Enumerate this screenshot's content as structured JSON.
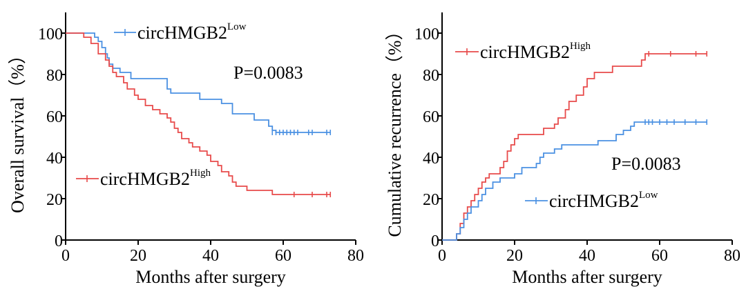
{
  "chart_data": [
    {
      "type": "line",
      "xlabel": "Months after surgery",
      "ylabel": "Overall survival（%）",
      "xlim": [
        0,
        80
      ],
      "ylim": [
        0,
        100
      ],
      "xticks": [
        0,
        20,
        40,
        60,
        80
      ],
      "yticks": [
        0,
        20,
        40,
        60,
        80,
        100
      ],
      "xtick_labels": [
        "0",
        "20",
        "40",
        "60",
        "80"
      ],
      "ytick_labels": [
        "0",
        "20",
        "40",
        "60",
        "80",
        "100"
      ],
      "annotation": "P=0.0083",
      "grid": false,
      "series": [
        {
          "name_base": "circHMGB2",
          "name_sup": "Low",
          "color": "#4a90e2",
          "steps": [
            [
              0,
              100
            ],
            [
              7,
              100
            ],
            [
              8,
              98
            ],
            [
              9,
              96
            ],
            [
              10,
              93
            ],
            [
              11,
              90
            ],
            [
              11.5,
              88
            ],
            [
              12,
              85
            ],
            [
              13,
              83
            ],
            [
              15,
              81
            ],
            [
              18,
              78
            ],
            [
              27,
              78
            ],
            [
              28,
              73
            ],
            [
              29,
              71
            ],
            [
              36,
              71
            ],
            [
              37,
              68
            ],
            [
              42,
              68
            ],
            [
              43,
              66
            ],
            [
              45,
              66
            ],
            [
              46,
              61
            ],
            [
              51,
              61
            ],
            [
              52,
              58
            ],
            [
              55,
              58
            ],
            [
              56,
              55
            ],
            [
              57,
              53
            ],
            [
              58,
              52
            ],
            [
              73,
              52
            ]
          ],
          "censored": [
            [
              57,
              52
            ],
            [
              58,
              52
            ],
            [
              59,
              52
            ],
            [
              60,
              52
            ],
            [
              61,
              52
            ],
            [
              62,
              52
            ],
            [
              63,
              52
            ],
            [
              64,
              52
            ],
            [
              67,
              52
            ],
            [
              68,
              52
            ],
            [
              72,
              52
            ],
            [
              73,
              52
            ]
          ]
        },
        {
          "name_base": "circHMGB2",
          "name_sup": "High",
          "color": "#e84a4a",
          "steps": [
            [
              0,
              100
            ],
            [
              4,
              100
            ],
            [
              5,
              98
            ],
            [
              7,
              95
            ],
            [
              9,
              90
            ],
            [
              11,
              87
            ],
            [
              12,
              84
            ],
            [
              13,
              81
            ],
            [
              14,
              79
            ],
            [
              16,
              76
            ],
            [
              17,
              73
            ],
            [
              19,
              70
            ],
            [
              20,
              68
            ],
            [
              22,
              65
            ],
            [
              24,
              63
            ],
            [
              26,
              61
            ],
            [
              28,
              59
            ],
            [
              29,
              57
            ],
            [
              30,
              54
            ],
            [
              31,
              52
            ],
            [
              32,
              49
            ],
            [
              34,
              47
            ],
            [
              35,
              45
            ],
            [
              37,
              43
            ],
            [
              39,
              41
            ],
            [
              40,
              38
            ],
            [
              42,
              36
            ],
            [
              43,
              33
            ],
            [
              45,
              31
            ],
            [
              46,
              28
            ],
            [
              47,
              26
            ],
            [
              50,
              24
            ],
            [
              56,
              24
            ],
            [
              57,
              22
            ],
            [
              73,
              22
            ]
          ],
          "censored": [
            [
              63,
              22
            ],
            [
              68,
              22
            ],
            [
              72,
              22
            ],
            [
              73,
              22
            ]
          ]
        }
      ]
    },
    {
      "type": "line",
      "xlabel": "Months after surgery",
      "ylabel": "Cumulative recurrence（%）",
      "xlim": [
        0,
        80
      ],
      "ylim": [
        0,
        100
      ],
      "xticks": [
        0,
        20,
        40,
        60,
        80
      ],
      "yticks": [
        0,
        20,
        40,
        60,
        80,
        100
      ],
      "xtick_labels": [
        "0",
        "20",
        "40",
        "60",
        "80"
      ],
      "ytick_labels": [
        "0",
        "20",
        "40",
        "60",
        "80",
        "100"
      ],
      "annotation": "P=0.0083",
      "grid": false,
      "series": [
        {
          "name_base": "circHMGB2",
          "name_sup": "High",
          "color": "#e84a4a",
          "steps": [
            [
              0,
              0
            ],
            [
              3,
              0
            ],
            [
              4,
              3
            ],
            [
              5,
              8
            ],
            [
              6,
              13
            ],
            [
              7,
              16
            ],
            [
              8,
              19
            ],
            [
              9,
              22
            ],
            [
              10,
              25
            ],
            [
              11,
              28
            ],
            [
              12,
              30
            ],
            [
              13,
              32
            ],
            [
              16,
              35
            ],
            [
              17,
              38
            ],
            [
              18,
              43
            ],
            [
              19,
              46
            ],
            [
              20,
              49
            ],
            [
              21,
              51
            ],
            [
              27,
              51
            ],
            [
              28,
              54
            ],
            [
              31,
              56
            ],
            [
              32,
              59
            ],
            [
              34,
              63
            ],
            [
              35,
              67
            ],
            [
              37,
              70
            ],
            [
              39,
              74
            ],
            [
              40,
              78
            ],
            [
              42,
              81
            ],
            [
              46,
              81
            ],
            [
              47,
              84
            ],
            [
              53,
              84
            ],
            [
              55,
              87
            ],
            [
              56,
              90
            ],
            [
              73,
              90
            ]
          ],
          "censored": [
            [
              57,
              90
            ],
            [
              63,
              90
            ],
            [
              70,
              90
            ],
            [
              73,
              90
            ]
          ]
        },
        {
          "name_base": "circHMGB2",
          "name_sup": "Low",
          "color": "#4a90e2",
          "steps": [
            [
              0,
              0
            ],
            [
              3,
              0
            ],
            [
              4,
              3
            ],
            [
              5,
              6
            ],
            [
              6,
              10
            ],
            [
              7,
              13
            ],
            [
              8,
              16
            ],
            [
              10,
              19
            ],
            [
              11,
              22
            ],
            [
              12,
              25
            ],
            [
              14,
              28
            ],
            [
              16,
              30
            ],
            [
              20,
              32
            ],
            [
              22,
              35
            ],
            [
              26,
              37
            ],
            [
              27,
              40
            ],
            [
              28,
              42
            ],
            [
              31,
              44
            ],
            [
              33,
              46
            ],
            [
              42,
              46
            ],
            [
              43,
              48
            ],
            [
              47,
              48
            ],
            [
              48,
              51
            ],
            [
              50,
              53
            ],
            [
              52,
              55
            ],
            [
              53,
              57
            ],
            [
              73,
              57
            ]
          ],
          "censored": [
            [
              56,
              57
            ],
            [
              57,
              57
            ],
            [
              58,
              57
            ],
            [
              60,
              57
            ],
            [
              62,
              57
            ],
            [
              64,
              57
            ],
            [
              67,
              57
            ],
            [
              70,
              57
            ],
            [
              73,
              57
            ]
          ]
        }
      ]
    }
  ]
}
